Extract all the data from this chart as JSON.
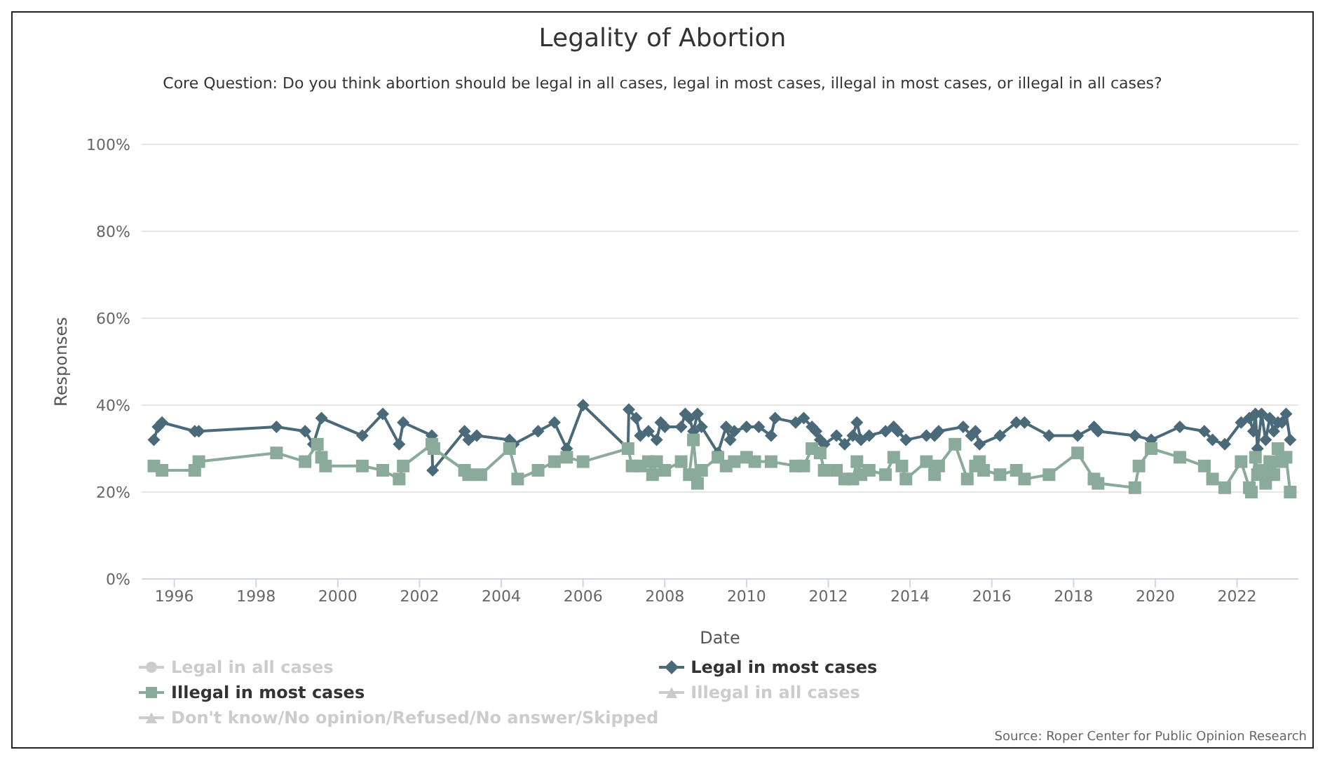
{
  "chart_data": {
    "type": "line",
    "title": "Legality of Abortion",
    "subtitle": "Core Question: Do you think abortion should be legal in all cases, legal in most cases, illegal in most cases, or illegal in all cases?",
    "xlabel": "Date",
    "ylabel": "Responses",
    "xlim": [
      1995.2,
      2023.5
    ],
    "xticks": [
      1996,
      1998,
      2000,
      2002,
      2004,
      2006,
      2008,
      2010,
      2012,
      2014,
      2016,
      2018,
      2020,
      2022
    ],
    "ylim": [
      0,
      100
    ],
    "yticks": [
      {
        "value": 0,
        "label": "0%"
      },
      {
        "value": 20,
        "label": "20%"
      },
      {
        "value": 40,
        "label": "40%"
      },
      {
        "value": 60,
        "label": "60%"
      },
      {
        "value": 80,
        "label": "80%"
      },
      {
        "value": 100,
        "label": "100%"
      }
    ],
    "grid": "y",
    "legend": "bottom",
    "annotations": [
      "Source: Roper Center for Public Opinion Research"
    ],
    "series": [
      {
        "name": "Legal in all cases",
        "color": "#cccccc",
        "marker": "circle"
      },
      {
        "name": "Legal in most cases",
        "color": "#4a6a7a",
        "marker": "diamond",
        "x": [
          1995.5,
          1995.6,
          1995.7,
          1996.5,
          1996.6,
          1998.5,
          1999.2,
          1999.4,
          1999.6,
          2000.6,
          2001.1,
          2001.5,
          2001.6,
          2002.3,
          2002.32,
          2003.1,
          2003.2,
          2003.4,
          2004.2,
          2004.3,
          2004.9,
          2005.3,
          2005.6,
          2006.0,
          2007.1,
          2007.12,
          2007.3,
          2007.4,
          2007.6,
          2007.8,
          2007.9,
          2008.0,
          2008.4,
          2008.5,
          2008.6,
          2008.7,
          2008.8,
          2008.9,
          2009.3,
          2009.5,
          2009.6,
          2009.7,
          2010.0,
          2010.3,
          2010.6,
          2010.7,
          2011.2,
          2011.4,
          2011.6,
          2011.7,
          2011.8,
          2011.9,
          2012.2,
          2012.4,
          2012.6,
          2012.7,
          2012.8,
          2013.0,
          2013.4,
          2013.6,
          2013.7,
          2013.9,
          2014.4,
          2014.6,
          2014.7,
          2015.3,
          2015.5,
          2015.6,
          2015.7,
          2016.2,
          2016.6,
          2016.8,
          2017.4,
          2018.1,
          2018.5,
          2018.6,
          2019.5,
          2019.9,
          2020.6,
          2021.2,
          2021.4,
          2021.7,
          2022.1,
          2022.3,
          2022.4,
          2022.45,
          2022.5,
          2022.6,
          2022.7,
          2022.8,
          2022.9,
          2023.0,
          2023.1,
          2023.2,
          2023.3
        ],
        "values": [
          32,
          35,
          36,
          34,
          34,
          35,
          34,
          31,
          37,
          33,
          38,
          31,
          36,
          33,
          25,
          34,
          32,
          33,
          32,
          31,
          34,
          36,
          30,
          40,
          30,
          39,
          37,
          33,
          34,
          32,
          36,
          35,
          35,
          38,
          37,
          34,
          38,
          35,
          29,
          35,
          32,
          34,
          35,
          35,
          33,
          37,
          36,
          37,
          35,
          34,
          32,
          31,
          33,
          31,
          33,
          36,
          32,
          33,
          34,
          35,
          34,
          32,
          33,
          33,
          34,
          35,
          33,
          34,
          31,
          33,
          36,
          36,
          33,
          33,
          35,
          34,
          33,
          32,
          35,
          34,
          32,
          31,
          36,
          37,
          34,
          38,
          30,
          38,
          32,
          37,
          34,
          36,
          36,
          38,
          32
        ]
      },
      {
        "name": "Illegal in most cases",
        "color": "#8aaa9a",
        "marker": "square",
        "x": [
          1995.5,
          1995.7,
          1996.5,
          1996.6,
          1998.5,
          1999.2,
          1999.5,
          1999.6,
          1999.7,
          2000.6,
          2001.1,
          2001.5,
          2001.6,
          2002.3,
          2002.35,
          2003.1,
          2003.2,
          2003.5,
          2004.2,
          2004.4,
          2004.9,
          2005.3,
          2005.6,
          2006.0,
          2007.1,
          2007.2,
          2007.4,
          2007.6,
          2007.7,
          2007.8,
          2008.0,
          2008.4,
          2008.6,
          2008.7,
          2008.8,
          2008.9,
          2009.3,
          2009.5,
          2009.7,
          2010.0,
          2010.2,
          2010.6,
          2011.2,
          2011.4,
          2011.6,
          2011.8,
          2011.9,
          2012.2,
          2012.4,
          2012.6,
          2012.7,
          2012.8,
          2013.0,
          2013.4,
          2013.6,
          2013.8,
          2013.9,
          2014.4,
          2014.6,
          2014.7,
          2015.1,
          2015.4,
          2015.6,
          2015.7,
          2015.8,
          2016.2,
          2016.6,
          2016.8,
          2017.4,
          2018.1,
          2018.5,
          2018.6,
          2019.5,
          2019.6,
          2019.9,
          2020.6,
          2021.2,
          2021.4,
          2021.7,
          2022.1,
          2022.3,
          2022.35,
          2022.45,
          2022.5,
          2022.6,
          2022.7,
          2022.8,
          2022.9,
          2023.0,
          2023.1,
          2023.2,
          2023.3
        ],
        "values": [
          26,
          25,
          25,
          27,
          29,
          27,
          31,
          28,
          26,
          26,
          25,
          23,
          26,
          31,
          30,
          25,
          24,
          24,
          30,
          23,
          25,
          27,
          28,
          27,
          30,
          26,
          26,
          27,
          24,
          27,
          25,
          27,
          24,
          32,
          22,
          25,
          28,
          26,
          27,
          28,
          27,
          27,
          26,
          26,
          30,
          29,
          25,
          25,
          23,
          23,
          27,
          24,
          25,
          24,
          28,
          26,
          23,
          27,
          24,
          26,
          31,
          23,
          26,
          27,
          25,
          24,
          25,
          23,
          24,
          29,
          23,
          22,
          21,
          26,
          30,
          28,
          26,
          23,
          21,
          27,
          21,
          20,
          28,
          24,
          25,
          22,
          27,
          24,
          30,
          27,
          28,
          20
        ]
      },
      {
        "name": "Illegal in all cases",
        "color": "#cccccc",
        "marker": "triangle"
      },
      {
        "name": "Don't know/No opinion/Refused/No answer/Skipped",
        "color": "#cccccc",
        "marker": "triangle"
      }
    ]
  }
}
